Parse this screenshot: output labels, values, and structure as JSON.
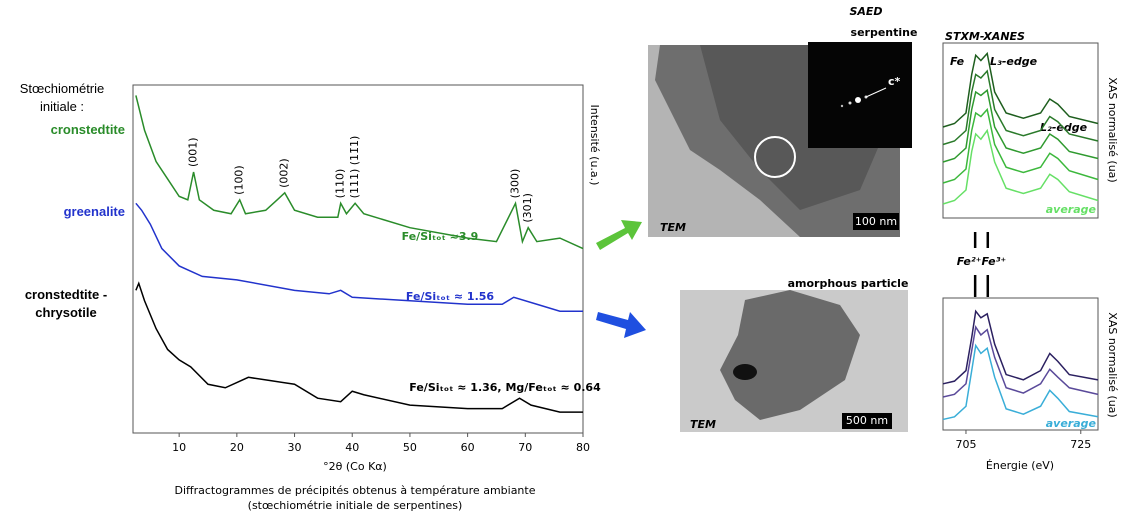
{
  "figure": {
    "left_heading": "Stœchiométrie initiale :",
    "caption": [
      "Diffractogrammes de précipités obtenus à température ambiante",
      "(stœchiométrie initiale de serpentines)"
    ],
    "images": {
      "saed_title": "SAED",
      "saed_subtitle": "serpentine",
      "saed_axis": "c*",
      "tem_label_top": "TEM",
      "scale_top": "100 nm",
      "particle_title": "amorphous particle",
      "tem_label_bottom": "TEM",
      "scale_bottom": "500 nm"
    }
  },
  "chart_data": [
    {
      "type": "line",
      "xlabel": "°2θ (Co Kα)",
      "ylabel": "Intensité (u.a.)",
      "xlim": [
        2,
        80
      ],
      "ylim": [
        0,
        100
      ],
      "xticks": [
        10,
        20,
        30,
        40,
        50,
        60,
        70,
        80
      ],
      "series": [
        {
          "name": "cronstedtite",
          "color": "#2a8c2a",
          "x": [
            2.5,
            4,
            6,
            8,
            10,
            11.5,
            12.5,
            13.5,
            16,
            19,
            20.5,
            21.5,
            25,
            27,
            28.3,
            30,
            34,
            37.5,
            38,
            39,
            40.5,
            42,
            50,
            60,
            65,
            68.3,
            69.5,
            70.5,
            72,
            76,
            80
          ],
          "values": [
            97,
            87,
            78,
            73,
            68,
            67,
            75,
            67,
            64,
            63,
            67,
            63,
            64,
            67,
            69,
            64,
            62,
            62,
            66,
            63,
            66,
            63,
            59,
            56,
            55,
            66,
            55,
            59,
            55,
            56,
            53
          ]
        },
        {
          "name": "greenalite",
          "color": "#2233cc",
          "x": [
            2.5,
            3.5,
            5,
            7,
            10,
            14,
            20,
            30,
            36,
            38,
            40,
            50,
            60,
            66,
            68,
            72,
            76,
            80
          ],
          "values": [
            66,
            64,
            60,
            53,
            48,
            45,
            44,
            41,
            40,
            41,
            39,
            38,
            37,
            37,
            39,
            37,
            35,
            35
          ]
        },
        {
          "name": "cronstedtite - chrysotile",
          "color": "#000000",
          "x": [
            2.5,
            3,
            4,
            6,
            8,
            10,
            12,
            15,
            18,
            22,
            26,
            30,
            34,
            38,
            40,
            42,
            50,
            60,
            66,
            69,
            71,
            76,
            80
          ],
          "values": [
            41,
            43,
            38,
            30,
            24,
            21,
            19,
            14,
            13,
            16,
            15,
            14,
            10,
            9,
            12,
            11,
            8,
            7,
            7,
            10,
            8,
            6,
            6
          ]
        }
      ],
      "peak_labels": [
        {
          "label": "(001)",
          "x": 12.5
        },
        {
          "label": "(100)",
          "x": 20.5
        },
        {
          "label": "(002)",
          "x": 28.3
        },
        {
          "label": "(110)",
          "x": 38
        },
        {
          "label": "(111) (11̄1)",
          "x": 40.5
        },
        {
          "label": "(300)",
          "x": 68.3
        },
        {
          "label": "(301)",
          "x": 70.5
        }
      ],
      "ratio_labels": [
        "Fe/Siₜₒₜ ≈3.9",
        "Fe/Siₜₒₜ ≈ 1.56",
        "Fe/Siₜₒₜ ≈ 1.36, Mg/Feₜₒₜ ≈ 0.64"
      ]
    },
    {
      "type": "line",
      "title": "STXM-XANES",
      "ylabel": "XAS normalisé (ua)",
      "xlim": [
        701,
        728
      ],
      "ylim": [
        0,
        100
      ],
      "annotations": [
        "Fe",
        "L₃-edge",
        "L₂-edge"
      ],
      "x": [
        701,
        703,
        705,
        706,
        706.7,
        707.6,
        708.7,
        710,
        712,
        715,
        718,
        719.6,
        721,
        723,
        728
      ],
      "series": [
        {
          "color": "#1e5e1e",
          "values": [
            52,
            54,
            60,
            82,
            93,
            90,
            94,
            72,
            60,
            57,
            60,
            68,
            65,
            58,
            54
          ]
        },
        {
          "color": "#2a7a2a",
          "values": [
            42,
            44,
            50,
            72,
            82,
            80,
            84,
            62,
            50,
            47,
            50,
            58,
            55,
            48,
            44
          ]
        },
        {
          "color": "#2f9a2f",
          "values": [
            32,
            34,
            40,
            62,
            72,
            70,
            73,
            52,
            40,
            37,
            40,
            48,
            45,
            38,
            34
          ]
        },
        {
          "color": "#3cb83c",
          "values": [
            20,
            22,
            28,
            50,
            60,
            58,
            62,
            42,
            29,
            26,
            29,
            37,
            34,
            27,
            22
          ]
        },
        {
          "name": "average",
          "color": "#66e066",
          "values": [
            8,
            10,
            16,
            38,
            48,
            45,
            50,
            32,
            17,
            14,
            17,
            25,
            22,
            15,
            10
          ]
        }
      ]
    },
    {
      "type": "line",
      "xlabel": "Énergie (eV)",
      "ylabel": "XAS normalisé (ua)",
      "xlim": [
        701,
        728
      ],
      "ylim": [
        0,
        100
      ],
      "xticks": [
        705,
        725
      ],
      "markers": [
        {
          "label": "Fe²⁺",
          "x": 706.6
        },
        {
          "label": "Fe³⁺",
          "x": 708.8
        }
      ],
      "x": [
        701,
        703,
        705,
        706,
        706.7,
        707.6,
        708.7,
        710,
        712,
        715,
        718,
        719.6,
        721,
        723,
        728
      ],
      "series": [
        {
          "color": "#2b2060",
          "values": [
            35,
            37,
            45,
            70,
            90,
            85,
            88,
            65,
            42,
            38,
            45,
            58,
            52,
            42,
            38
          ]
        },
        {
          "color": "#5a4a9a",
          "values": [
            25,
            27,
            35,
            60,
            78,
            72,
            76,
            55,
            32,
            28,
            35,
            46,
            40,
            32,
            27
          ]
        },
        {
          "name": "average",
          "color": "#3aaed8",
          "values": [
            8,
            10,
            18,
            45,
            64,
            58,
            62,
            40,
            16,
            12,
            18,
            30,
            24,
            14,
            10
          ]
        }
      ]
    }
  ]
}
